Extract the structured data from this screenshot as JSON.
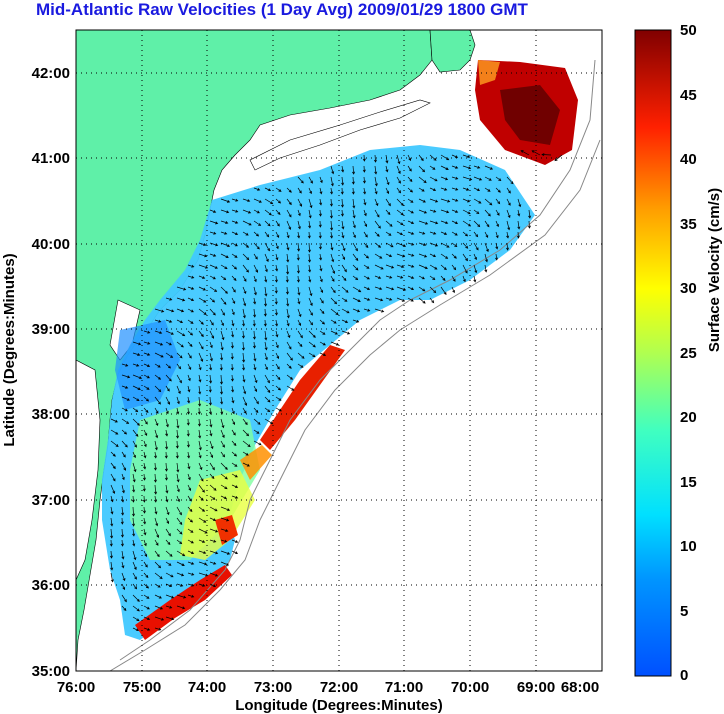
{
  "title": "Mid-Atlantic Raw Velocities (1 Day Avg) 2009/01/29 1800 GMT",
  "xlabel": "Longitude (Degrees:Minutes)",
  "ylabel": "Latitude (Degrees:Minutes)",
  "colorbar_label": "Surface Velocity (cm/s)",
  "x_ticks": [
    "76:00",
    "75:00",
    "74:00",
    "73:00",
    "72:00",
    "71:00",
    "70:00",
    "69:00",
    "68:00"
  ],
  "y_ticks": [
    "42:00",
    "41:00",
    "40:00",
    "39:00",
    "38:00",
    "37:00",
    "36:00",
    "35:00"
  ],
  "colorbar_ticks": [
    "50",
    "45",
    "40",
    "35",
    "30",
    "25",
    "20",
    "15",
    "10",
    "5",
    "0"
  ],
  "colors": {
    "land": "#5ff0a8",
    "title": "#1a1adf",
    "grid": "#000000"
  }
}
